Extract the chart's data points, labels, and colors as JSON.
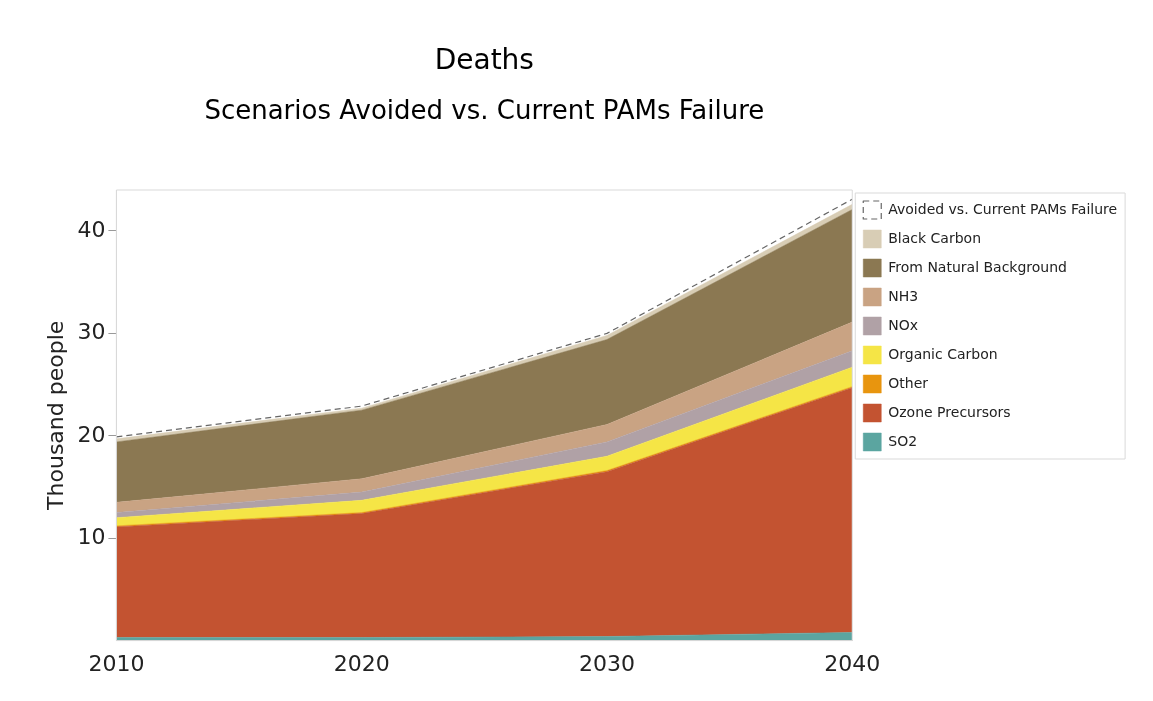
{
  "chart_data": {
    "type": "area",
    "title": "Deaths",
    "subtitle": "Scenarios Avoided vs. Current PAMs Failure",
    "ylabel": "Thousand people",
    "x": [
      2010,
      2020,
      2030,
      2040
    ],
    "xlim": [
      2010,
      2040
    ],
    "xticks": [
      2010,
      2020,
      2030,
      2040
    ],
    "ylim": [
      0,
      44
    ],
    "yticks": [
      10,
      20,
      30,
      40
    ],
    "stacked": true,
    "grid": false,
    "legend": "top right",
    "series": [
      {
        "name": "SO2",
        "color": "#5ba5a0",
        "values": [
          0.3,
          0.3,
          0.4,
          0.8
        ]
      },
      {
        "name": "Ozone Precursors",
        "color": "#c35331",
        "values": [
          10.8,
          12.1,
          16.1,
          23.9
        ]
      },
      {
        "name": "Other",
        "color": "#e8950e",
        "values": [
          0.1,
          0.1,
          0.1,
          0.1
        ]
      },
      {
        "name": "Organic Carbon",
        "color": "#f5e546",
        "values": [
          0.8,
          1.2,
          1.4,
          1.9
        ]
      },
      {
        "name": "NOx",
        "color": "#b0a1a6",
        "values": [
          0.5,
          0.8,
          1.4,
          1.6
        ]
      },
      {
        "name": "NH3",
        "color": "#c9a383",
        "values": [
          1.0,
          1.3,
          1.7,
          2.8
        ]
      },
      {
        "name": "From Natural Background",
        "color": "#8b7852",
        "values": [
          5.9,
          6.7,
          8.3,
          11.0
        ]
      },
      {
        "name": "Black Carbon",
        "color": "#d8cdb5",
        "values": [
          0.3,
          0.2,
          0.4,
          0.5
        ]
      },
      {
        "name": "Avoided vs. Current PAMs Failure",
        "color": "#ffffff",
        "line_style": "dashed",
        "values": [
          0.2,
          0.2,
          0.2,
          0.5
        ]
      }
    ]
  }
}
